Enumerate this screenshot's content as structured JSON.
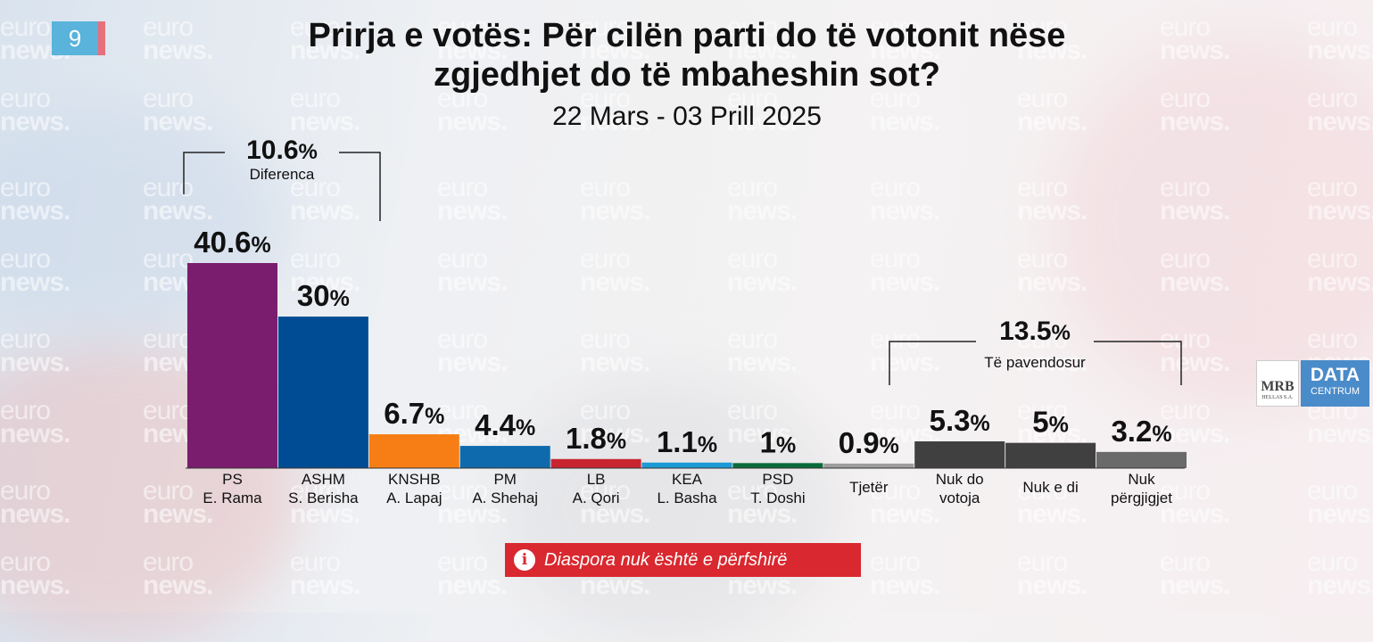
{
  "page_number": "9",
  "chart_data": {
    "type": "bar",
    "title": "Prirja e votës: Për cilën parti do të votonit nëse zgjedhjet do të mbaheshin sot?",
    "subtitle": "22 Mars - 03 Prill 2025",
    "categories": [
      [
        "PS",
        "E. Rama"
      ],
      [
        "ASHM",
        "S. Berisha"
      ],
      [
        "KNSHB",
        "A. Lapaj"
      ],
      [
        "PM",
        "A. Shehaj"
      ],
      [
        "LB",
        "A. Qori"
      ],
      [
        "KEA",
        "L. Basha"
      ],
      [
        "PSD",
        "T. Doshi"
      ],
      [
        "Tjetër"
      ],
      [
        "Nuk do",
        "votoja"
      ],
      [
        "Nuk e di"
      ],
      [
        "Nuk",
        "përgjigjet"
      ]
    ],
    "values": [
      40.6,
      30,
      6.7,
      4.4,
      1.8,
      1.1,
      1,
      0.9,
      5.3,
      5,
      3.2
    ],
    "value_labels": [
      "40.6",
      "30",
      "6.7",
      "4.4",
      "1.8",
      "1.1",
      "1",
      "0.9",
      "5.3",
      "5",
      "3.2"
    ],
    "unit": "%",
    "colors": [
      "#7a1d6e",
      "#004c94",
      "#f77e14",
      "#0e6aad",
      "#c82530",
      "#1b9ad6",
      "#0a6a3a",
      "#9d9d9d",
      "#404040",
      "#404040",
      "#6a6a6a"
    ],
    "ylim": [
      0,
      42
    ],
    "annotations": [
      {
        "value": "10.6",
        "unit": "%",
        "label": "Diferenca",
        "spans": [
          0,
          1
        ]
      },
      {
        "value": "13.5",
        "unit": "%",
        "label": "Të pavendosur",
        "spans": [
          8,
          10
        ]
      }
    ]
  },
  "logo": {
    "left": "MRB",
    "left_sub": "HELLAS S.A.",
    "right_top": "DATA",
    "right_bottom": "CENTRUM"
  },
  "note": {
    "icon": "info-icon",
    "text": "Diaspora nuk është e përfshirë"
  },
  "watermark": {
    "line1": "euro",
    "line2": "news."
  }
}
